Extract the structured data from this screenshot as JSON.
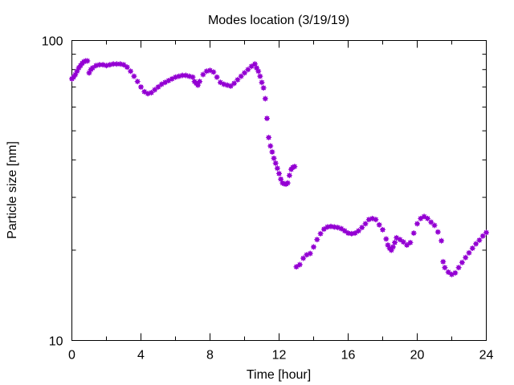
{
  "chart_data": {
    "type": "scatter",
    "title": "Modes location (3/19/19)",
    "xlabel": "Time [hour]",
    "ylabel": "Particle size [nm]",
    "xlim": [
      0,
      24
    ],
    "ylim": [
      10,
      100
    ],
    "yscale": "log",
    "xticks": [
      0,
      4,
      8,
      12,
      16,
      20,
      24
    ],
    "yticks": [
      10,
      100
    ],
    "ytick_labels": [
      "10",
      "100"
    ],
    "grid": false,
    "legend": "none",
    "marker_color": "#9400d3",
    "series": [
      {
        "points": [
          [
            0.0,
            74.5
          ],
          [
            0.1,
            75.5
          ],
          [
            0.2,
            77
          ],
          [
            0.3,
            79
          ],
          [
            0.4,
            81
          ],
          [
            0.5,
            82.5
          ],
          [
            0.6,
            84
          ],
          [
            0.7,
            85
          ],
          [
            0.8,
            85.5
          ],
          [
            0.9,
            85.5
          ],
          [
            1.0,
            78
          ],
          [
            1.1,
            80
          ],
          [
            1.2,
            81
          ],
          [
            1.4,
            82.5
          ],
          [
            1.6,
            83
          ],
          [
            1.8,
            83
          ],
          [
            2.0,
            82.5
          ],
          [
            2.2,
            83
          ],
          [
            2.4,
            83.5
          ],
          [
            2.6,
            83.5
          ],
          [
            2.8,
            83.5
          ],
          [
            3.0,
            83
          ],
          [
            3.2,
            81.5
          ],
          [
            3.4,
            79
          ],
          [
            3.6,
            76
          ],
          [
            3.8,
            73
          ],
          [
            4.0,
            70
          ],
          [
            4.2,
            67.5
          ],
          [
            4.4,
            66.5
          ],
          [
            4.6,
            67
          ],
          [
            4.8,
            68.5
          ],
          [
            5.0,
            70
          ],
          [
            5.2,
            71.5
          ],
          [
            5.4,
            72.5
          ],
          [
            5.6,
            73.5
          ],
          [
            5.8,
            74.5
          ],
          [
            6.0,
            75.5
          ],
          [
            6.2,
            76
          ],
          [
            6.4,
            76.5
          ],
          [
            6.6,
            76.5
          ],
          [
            6.8,
            76
          ],
          [
            7.0,
            75.5
          ],
          [
            7.1,
            73
          ],
          [
            7.2,
            72
          ],
          [
            7.3,
            71
          ],
          [
            7.4,
            73
          ],
          [
            7.6,
            77
          ],
          [
            7.8,
            79
          ],
          [
            8.0,
            79.5
          ],
          [
            8.2,
            78.5
          ],
          [
            8.4,
            75.5
          ],
          [
            8.6,
            72.5
          ],
          [
            8.8,
            71.5
          ],
          [
            9.0,
            71
          ],
          [
            9.2,
            70.5
          ],
          [
            9.4,
            72
          ],
          [
            9.6,
            74
          ],
          [
            9.8,
            76
          ],
          [
            10.0,
            78
          ],
          [
            10.2,
            80
          ],
          [
            10.4,
            82
          ],
          [
            10.6,
            83.5
          ],
          [
            10.7,
            81
          ],
          [
            10.8,
            79
          ],
          [
            10.9,
            76
          ],
          [
            11.0,
            72.5
          ],
          [
            11.1,
            69.5
          ],
          [
            11.2,
            64
          ],
          [
            11.3,
            55
          ],
          [
            11.4,
            47.5
          ],
          [
            11.5,
            44.5
          ],
          [
            11.6,
            42.5
          ],
          [
            11.7,
            40.5
          ],
          [
            11.8,
            39
          ],
          [
            11.9,
            37.5
          ],
          [
            12.0,
            36
          ],
          [
            12.1,
            34.5
          ],
          [
            12.2,
            33.5
          ],
          [
            12.3,
            33.3
          ],
          [
            12.4,
            33.2
          ],
          [
            12.5,
            33.5
          ],
          [
            12.6,
            35.5
          ],
          [
            12.7,
            37.2
          ],
          [
            12.8,
            37.8
          ],
          [
            12.9,
            38
          ],
          [
            13.0,
            17.6
          ],
          [
            13.2,
            17.9
          ],
          [
            13.4,
            18.8
          ],
          [
            13.6,
            19.3
          ],
          [
            13.8,
            19.5
          ],
          [
            14.0,
            20.5
          ],
          [
            14.2,
            21.7
          ],
          [
            14.4,
            22.7
          ],
          [
            14.6,
            23.5
          ],
          [
            14.8,
            23.9
          ],
          [
            15.0,
            24
          ],
          [
            15.2,
            23.9
          ],
          [
            15.4,
            23.8
          ],
          [
            15.6,
            23.6
          ],
          [
            15.8,
            23.2
          ],
          [
            16.0,
            22.8
          ],
          [
            16.2,
            22.7
          ],
          [
            16.4,
            22.8
          ],
          [
            16.6,
            23.2
          ],
          [
            16.8,
            23.8
          ],
          [
            17.0,
            24.5
          ],
          [
            17.2,
            25.3
          ],
          [
            17.4,
            25.5
          ],
          [
            17.6,
            25.3
          ],
          [
            17.8,
            24.3
          ],
          [
            18.0,
            23.4
          ],
          [
            18.2,
            21.8
          ],
          [
            18.3,
            20.8
          ],
          [
            18.4,
            20.3
          ],
          [
            18.5,
            20
          ],
          [
            18.6,
            20.5
          ],
          [
            18.7,
            21.2
          ],
          [
            18.8,
            22
          ],
          [
            19.0,
            21.7
          ],
          [
            19.2,
            21.3
          ],
          [
            19.4,
            20.8
          ],
          [
            19.6,
            21.2
          ],
          [
            19.8,
            22.8
          ],
          [
            20.0,
            24.5
          ],
          [
            20.2,
            25.5
          ],
          [
            20.4,
            25.9
          ],
          [
            20.6,
            25.5
          ],
          [
            20.8,
            24.8
          ],
          [
            21.0,
            24.2
          ],
          [
            21.2,
            23
          ],
          [
            21.4,
            21.5
          ],
          [
            21.5,
            18.3
          ],
          [
            21.6,
            17.5
          ],
          [
            21.8,
            16.9
          ],
          [
            22.0,
            16.6
          ],
          [
            22.2,
            16.8
          ],
          [
            22.4,
            17.5
          ],
          [
            22.6,
            18.2
          ],
          [
            22.8,
            18.9
          ],
          [
            23.0,
            19.6
          ],
          [
            23.2,
            20.3
          ],
          [
            23.4,
            21
          ],
          [
            23.6,
            21.6
          ],
          [
            23.8,
            22.3
          ],
          [
            24.0,
            22.9
          ]
        ]
      }
    ]
  }
}
